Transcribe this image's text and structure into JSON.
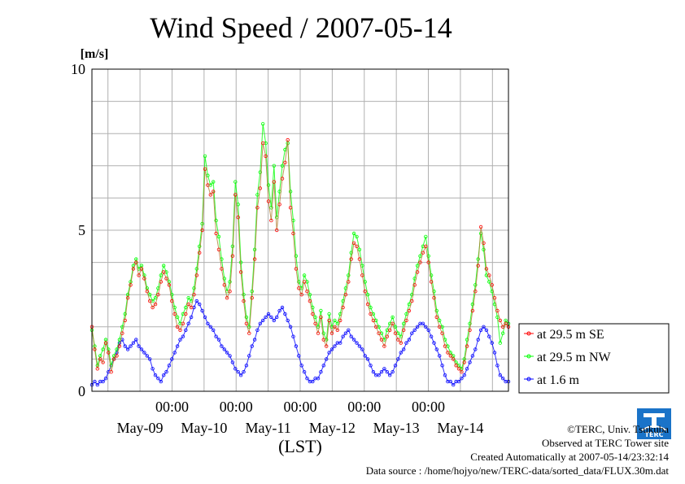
{
  "chart_data": {
    "type": "line",
    "title": "Wind Speed / 2007-05-14",
    "ylabel": "[m/s]",
    "xlabel": "(LST)",
    "ylim": [
      0,
      10
    ],
    "xlim_hours": [
      -6,
      150
    ],
    "yticks": [
      "0",
      "5",
      "10"
    ],
    "time_ticks": [
      "00:00",
      "00:00",
      "00:00",
      "00:00",
      "00:00"
    ],
    "date_labels": [
      "May-09",
      "May-10",
      "May-11",
      "May-12",
      "May-13",
      "May-14"
    ],
    "grid": true,
    "legend_position": "right",
    "series": [
      {
        "name": "at 29.5 m SE",
        "color": "#ff0000",
        "values": [
          2.0,
          1.3,
          0.7,
          1.0,
          0.9,
          1.5,
          1.2,
          0.6,
          1.0,
          1.1,
          1.4,
          1.8,
          2.2,
          2.9,
          3.3,
          3.8,
          4.0,
          3.6,
          3.8,
          3.5,
          3.1,
          2.8,
          2.6,
          2.7,
          3.0,
          3.4,
          3.7,
          3.5,
          3.3,
          2.8,
          2.4,
          2.0,
          1.9,
          2.1,
          2.4,
          2.7,
          2.6,
          3.0,
          3.6,
          4.3,
          5.0,
          6.9,
          6.4,
          6.1,
          6.2,
          4.9,
          4.4,
          3.8,
          3.3,
          2.9,
          3.1,
          4.2,
          6.1,
          5.4,
          3.7,
          2.8,
          2.1,
          1.8,
          2.9,
          4.1,
          5.7,
          6.3,
          7.7,
          7.3,
          5.9,
          5.3,
          6.5,
          5.0,
          5.8,
          6.6,
          7.1,
          7.8,
          5.7,
          4.9,
          3.8,
          3.2,
          3.0,
          3.4,
          3.1,
          2.8,
          2.4,
          2.1,
          1.8,
          2.3,
          1.6,
          1.4,
          2.2,
          1.8,
          2.0,
          1.9,
          2.2,
          2.6,
          3.0,
          3.4,
          4.1,
          4.6,
          4.5,
          4.1,
          3.6,
          3.1,
          2.7,
          2.4,
          2.2,
          2.0,
          1.8,
          1.6,
          1.4,
          1.7,
          1.9,
          2.1,
          1.8,
          1.6,
          1.5,
          1.9,
          2.2,
          2.5,
          2.8,
          3.3,
          3.7,
          4.0,
          4.3,
          4.5,
          4.0,
          3.4,
          2.9,
          2.3,
          2.0,
          1.8,
          1.4,
          1.2,
          1.1,
          1.0,
          0.8,
          0.7,
          0.6,
          0.9,
          1.4,
          1.9,
          2.5,
          3.1,
          3.9,
          5.1,
          4.6,
          3.8,
          3.6,
          3.3,
          2.9,
          2.5,
          2.2,
          2.0,
          2.1,
          2.0
        ]
      },
      {
        "name": "at 29.5 m NW",
        "color": "#00ff00",
        "values": [
          1.9,
          1.4,
          0.8,
          1.1,
          1.3,
          1.6,
          1.3,
          0.8,
          1.1,
          1.3,
          1.6,
          2.0,
          2.4,
          3.0,
          3.4,
          3.9,
          4.1,
          3.8,
          3.9,
          3.6,
          3.2,
          3.0,
          2.8,
          2.9,
          3.2,
          3.6,
          3.9,
          3.7,
          3.4,
          3.0,
          2.6,
          2.3,
          2.1,
          2.4,
          2.6,
          2.9,
          2.8,
          3.2,
          3.8,
          4.5,
          5.2,
          7.3,
          6.7,
          6.4,
          6.5,
          5.3,
          4.8,
          4.1,
          3.5,
          3.1,
          3.4,
          4.5,
          6.5,
          5.8,
          4.0,
          3.0,
          2.3,
          2.0,
          3.1,
          4.4,
          6.1,
          6.8,
          8.3,
          7.7,
          6.4,
          5.7,
          7.0,
          5.4,
          6.2,
          7.0,
          7.5,
          7.7,
          6.2,
          5.3,
          4.2,
          3.4,
          3.2,
          3.6,
          3.4,
          3.0,
          2.6,
          2.3,
          2.0,
          2.5,
          1.8,
          1.6,
          2.4,
          2.0,
          2.2,
          2.1,
          2.4,
          2.8,
          3.2,
          3.6,
          4.3,
          4.9,
          4.8,
          4.4,
          3.9,
          3.4,
          3.0,
          2.6,
          2.4,
          2.2,
          2.0,
          1.8,
          1.6,
          1.9,
          2.1,
          2.3,
          2.0,
          1.8,
          1.7,
          2.1,
          2.4,
          2.7,
          3.0,
          3.5,
          3.9,
          4.2,
          4.5,
          4.8,
          4.2,
          3.6,
          3.1,
          2.5,
          2.2,
          2.0,
          1.6,
          1.4,
          1.2,
          1.1,
          0.9,
          0.8,
          0.7,
          1.0,
          1.6,
          2.1,
          2.7,
          3.3,
          4.1,
          4.9,
          4.4,
          3.6,
          3.4,
          3.1,
          2.7,
          2.3,
          1.5,
          1.8,
          2.2,
          2.1
        ]
      },
      {
        "name": "at 1.6 m",
        "color": "#0000ff",
        "values": [
          0.2,
          0.3,
          0.2,
          0.3,
          0.3,
          0.4,
          0.6,
          0.8,
          1.0,
          1.2,
          1.5,
          1.6,
          1.4,
          1.3,
          1.4,
          1.5,
          1.6,
          1.4,
          1.3,
          1.2,
          1.1,
          1.0,
          0.7,
          0.5,
          0.4,
          0.3,
          0.5,
          0.6,
          0.8,
          1.0,
          1.2,
          1.4,
          1.6,
          1.7,
          1.9,
          2.1,
          2.3,
          2.6,
          2.8,
          2.7,
          2.5,
          2.3,
          2.1,
          2.0,
          1.9,
          1.7,
          1.6,
          1.4,
          1.3,
          1.2,
          1.1,
          0.9,
          0.7,
          0.6,
          0.5,
          0.6,
          0.8,
          1.1,
          1.4,
          1.6,
          1.9,
          2.1,
          2.2,
          2.3,
          2.4,
          2.3,
          2.2,
          2.3,
          2.5,
          2.6,
          2.4,
          2.2,
          2.0,
          1.7,
          1.4,
          1.1,
          0.8,
          0.6,
          0.4,
          0.3,
          0.3,
          0.4,
          0.4,
          0.6,
          0.8,
          1.0,
          1.2,
          1.3,
          1.4,
          1.5,
          1.5,
          1.7,
          1.8,
          1.9,
          1.7,
          1.6,
          1.5,
          1.4,
          1.3,
          1.1,
          1.0,
          0.8,
          0.6,
          0.5,
          0.5,
          0.6,
          0.7,
          0.6,
          0.5,
          0.6,
          0.8,
          1.0,
          1.2,
          1.3,
          1.5,
          1.6,
          1.8,
          1.9,
          2.0,
          2.1,
          2.1,
          2.0,
          1.9,
          1.7,
          1.5,
          1.3,
          1.1,
          0.8,
          0.5,
          0.3,
          0.3,
          0.2,
          0.3,
          0.3,
          0.4,
          0.5,
          0.7,
          0.9,
          1.1,
          1.3,
          1.6,
          1.9,
          2.0,
          1.9,
          1.7,
          1.5,
          1.2,
          0.8,
          0.5,
          0.4,
          0.3,
          0.3
        ]
      }
    ]
  },
  "footer": {
    "copyright": "©TERC, Univ. Tsukuba",
    "observed": "Observed at TERC Tower site",
    "created": "Created Automatically at 2007-05-14/23:32:14",
    "source": "Data source : /home/hojyo/new/TERC-data/sorted_data/FLUX.30m.dat"
  },
  "logo": {
    "icon": "terc-logo-icon",
    "text": "TERC",
    "color": "#1a73c8"
  }
}
